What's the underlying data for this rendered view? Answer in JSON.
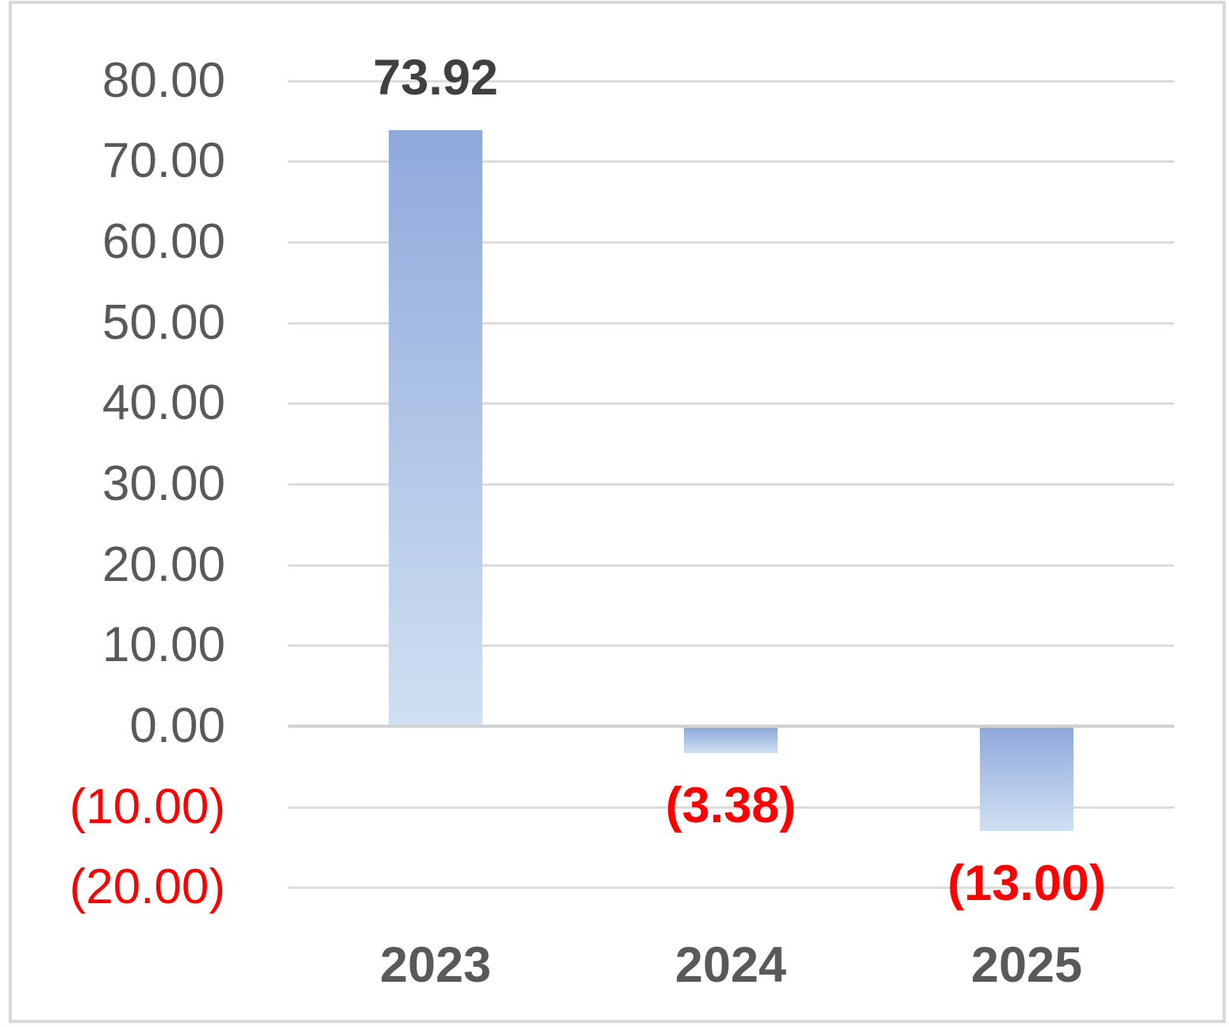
{
  "chart_data": {
    "type": "bar",
    "title": "",
    "xlabel": "",
    "ylabel": "",
    "categories": [
      "2023",
      "2024",
      "2025"
    ],
    "values": [
      73.92,
      -3.38,
      -13.0
    ],
    "data_labels": [
      "73.92",
      "(3.38)",
      "(13.00)"
    ],
    "yticks": [
      {
        "value": 80,
        "label": "80.00"
      },
      {
        "value": 70,
        "label": "70.00"
      },
      {
        "value": 60,
        "label": "60.00"
      },
      {
        "value": 50,
        "label": "50.00"
      },
      {
        "value": 40,
        "label": "40.00"
      },
      {
        "value": 30,
        "label": "30.00"
      },
      {
        "value": 20,
        "label": "20.00"
      },
      {
        "value": 10,
        "label": "10.00"
      },
      {
        "value": 0,
        "label": "0.00"
      },
      {
        "value": -10,
        "label": "(10.00)"
      },
      {
        "value": -20,
        "label": "(20.00)"
      }
    ],
    "ylim": [
      -20,
      80
    ],
    "grid": true,
    "legend": false,
    "colors": {
      "bar_gradient_top": "#8FA9DC",
      "bar_gradient_bottom": "#D0E0F2",
      "positive_label": "#404040",
      "negative_label": "#FF0000",
      "axis_text": "#595959",
      "gridline": "#DCDCDC",
      "zero_line": "#D2D2D2",
      "border": "#D9D9D9"
    }
  }
}
